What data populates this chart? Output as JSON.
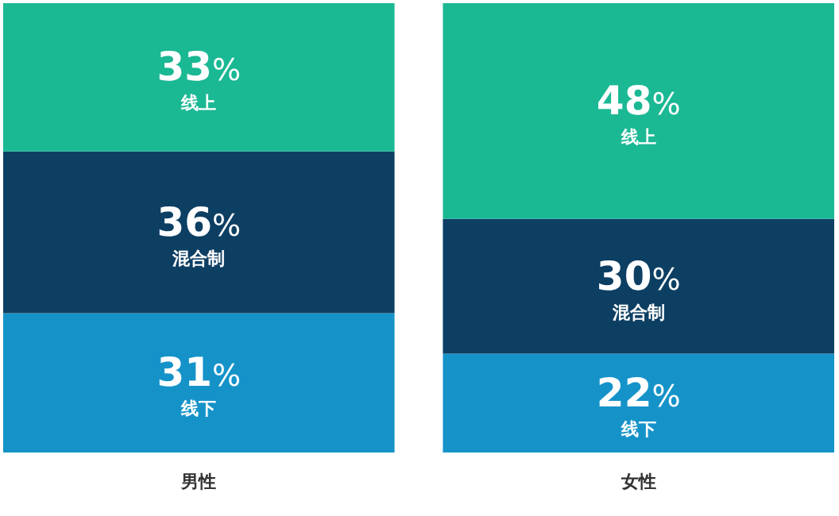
{
  "chart_data": {
    "type": "bar",
    "stacked": true,
    "categories": [
      "男性",
      "女性"
    ],
    "ylim": [
      0,
      100
    ],
    "tick_labels": "x",
    "series": [
      {
        "name": "线下",
        "color": "#1593c9",
        "values": [
          31,
          22
        ],
        "value_labels": [
          "31%",
          "22%"
        ]
      },
      {
        "name": "混合制",
        "color": "#0d3f63",
        "values": [
          36,
          30
        ],
        "value_labels": [
          "36%",
          "30%"
        ]
      },
      {
        "name": "线上",
        "color": "#1bb894",
        "values": [
          33,
          48
        ],
        "value_labels": [
          "33%",
          "48%"
        ]
      }
    ]
  }
}
